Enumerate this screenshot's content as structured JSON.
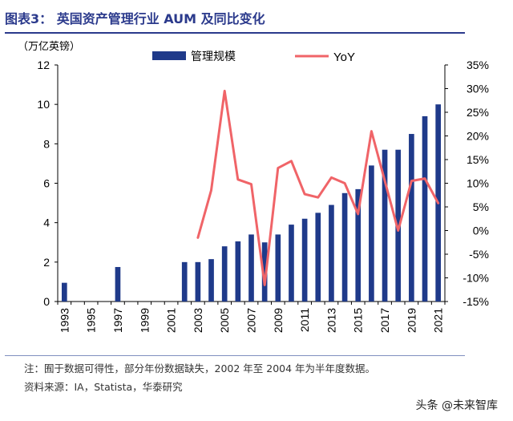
{
  "header": {
    "title": "图表3： 英国资产管理行业 AUM 及同比变化"
  },
  "footer": {
    "note": "注：囿于数据可得性，部分年份数据缺失，2002 年至 2004 年为半年度数据。",
    "source": "资料来源：IA，Statista，华泰研究",
    "watermark": "头条 @未来智库"
  },
  "chart_data": {
    "type": "bar+line",
    "unit_label": "（万亿英镑）",
    "categories": [
      1993,
      1994,
      1995,
      1996,
      1997,
      1998,
      1999,
      2000,
      2001,
      2002,
      2003,
      2004,
      2005,
      2006,
      2007,
      2008,
      2009,
      2010,
      2011,
      2012,
      2013,
      2014,
      2015,
      2016,
      2017,
      2018,
      2019,
      2020,
      2021
    ],
    "x_tick_labels": [
      "1993",
      "1995",
      "1997",
      "1999",
      "2001",
      "2003",
      "2005",
      "2007",
      "2009",
      "2011",
      "2013",
      "2015",
      "2017",
      "2019",
      "2021"
    ],
    "series": [
      {
        "name": "管理规模",
        "type": "bar",
        "axis": "left",
        "color": "#1f3a8a",
        "values": [
          0.95,
          null,
          null,
          null,
          1.75,
          null,
          null,
          null,
          null,
          2.0,
          2.0,
          2.15,
          2.8,
          3.05,
          3.4,
          3.0,
          3.4,
          3.9,
          4.2,
          4.5,
          4.9,
          5.5,
          5.7,
          6.9,
          7.7,
          7.7,
          8.5,
          9.4,
          10.0
        ]
      },
      {
        "name": "YoY",
        "type": "line",
        "axis": "right",
        "color": "#f06468",
        "values": [
          null,
          null,
          null,
          null,
          null,
          null,
          null,
          null,
          null,
          null,
          -1.5,
          8.5,
          29.5,
          10.8,
          9.8,
          -11.5,
          13.2,
          14.7,
          7.7,
          7.0,
          11.2,
          10.0,
          3.5,
          21.0,
          10.5,
          0.0,
          10.5,
          11.0,
          5.8
        ]
      }
    ],
    "y_left": {
      "min": 0,
      "max": 12,
      "ticks": [
        "0",
        "2",
        "4",
        "6",
        "8",
        "10",
        "12"
      ]
    },
    "y_right": {
      "min": -15,
      "max": 35,
      "ticks": [
        "-15%",
        "-10%",
        "-5%",
        "0%",
        "5%",
        "10%",
        "15%",
        "20%",
        "25%",
        "30%",
        "35%"
      ]
    },
    "legend": {
      "position": "top"
    }
  }
}
